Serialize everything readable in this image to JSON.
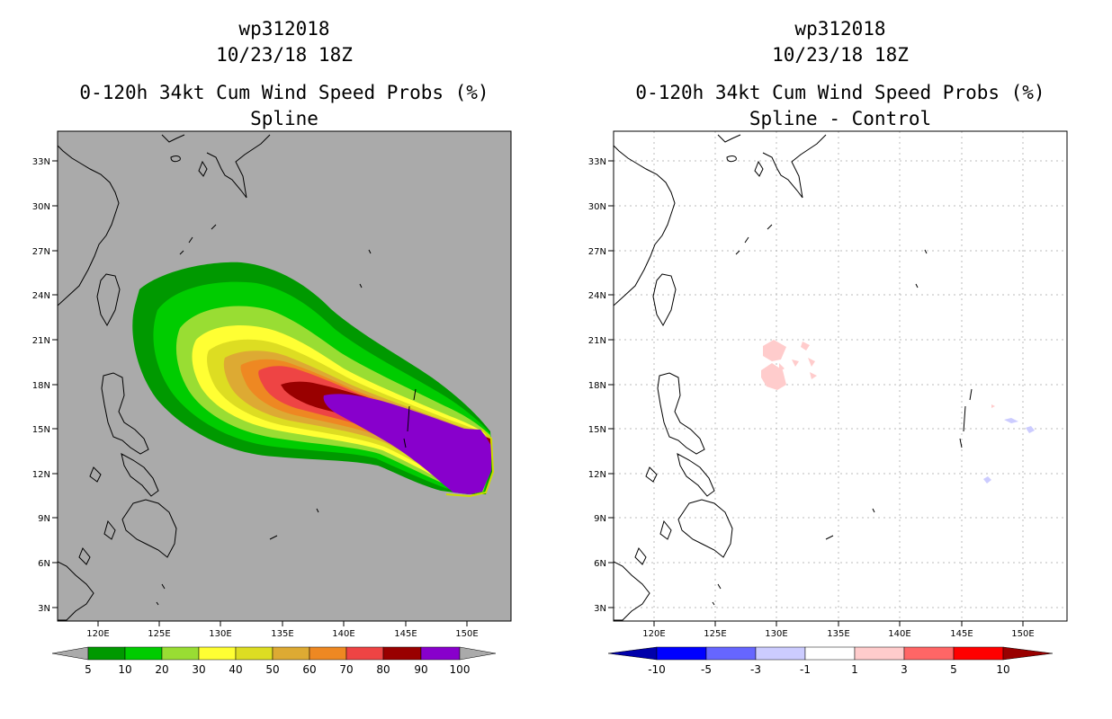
{
  "left": {
    "title_line1": "wp312018",
    "title_line2": "10/23/18 18Z",
    "title_line3": "0-120h 34kt Cum Wind Speed Probs (%)",
    "title_line4": "Spline",
    "background_color": "#aaaaaa",
    "colorbar": {
      "labels": [
        "5",
        "10",
        "20",
        "30",
        "40",
        "50",
        "60",
        "70",
        "80",
        "90",
        "100"
      ],
      "colors": [
        "#009900",
        "#00cc00",
        "#99dd33",
        "#ffff33",
        "#dddd22",
        "#ddaa33",
        "#ee8822",
        "#ee4444",
        "#990000",
        "#8800cc"
      ],
      "end_color": "#aaaaaa"
    }
  },
  "right": {
    "title_line1": "wp312018",
    "title_line2": "10/23/18 18Z",
    "title_line3": "0-120h 34kt Cum Wind Speed Probs (%)",
    "title_line4": "Spline - Control",
    "background_color": "#ffffff",
    "colorbar": {
      "labels": [
        "-10",
        "-5",
        "-3",
        "-1",
        "1",
        "3",
        "5",
        "10"
      ],
      "colors": [
        "#0000aa",
        "#0000ff",
        "#6666ff",
        "#ccccff",
        "#ffffff",
        "#ffcccc",
        "#ff6666",
        "#ff0000",
        "#990000"
      ]
    }
  },
  "axes": {
    "x_ticks": [
      "120E",
      "125E",
      "130E",
      "135E",
      "140E",
      "145E",
      "150E"
    ],
    "y_ticks": [
      "33N",
      "30N",
      "27N",
      "24N",
      "21N",
      "18N",
      "15N",
      "12N",
      "9N",
      "6N",
      "3N"
    ]
  }
}
